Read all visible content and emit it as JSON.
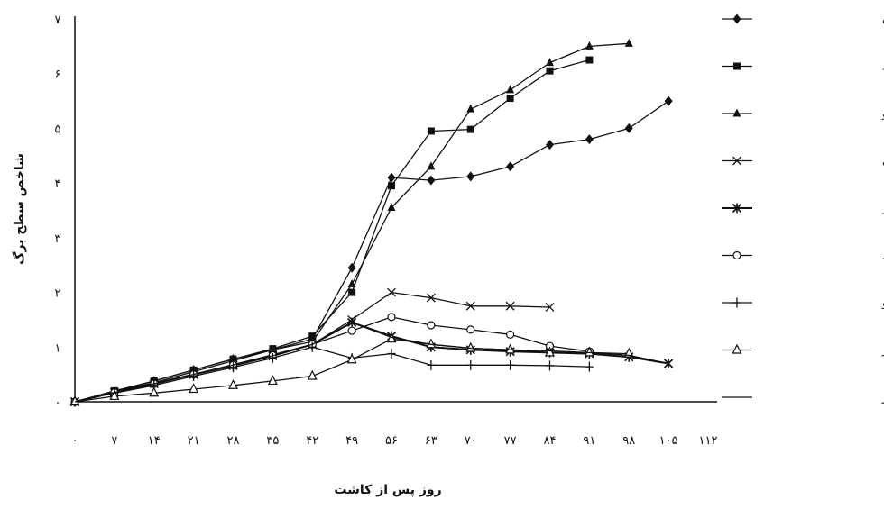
{
  "chart_data": {
    "type": "line",
    "title": "",
    "xlabel": "روز پس از کاشت",
    "ylabel": "شاخص سطح برگ",
    "x_ticks": [
      0,
      7,
      14,
      21,
      28,
      35,
      42,
      49,
      56,
      63,
      70,
      77,
      84,
      91,
      98,
      105,
      112
    ],
    "x_tick_labels": [
      "۰",
      "۷",
      "۱۴",
      "۲۱",
      "۲۸",
      "۳۵",
      "۴۲",
      "۴۹",
      "۵۶",
      "۶۳",
      "۷۰",
      "۷۷",
      "۸۴",
      "۹۱",
      "۹۸",
      "۱۰۵",
      "۱۱۲"
    ],
    "y_ticks": [
      0,
      1,
      2,
      3,
      4,
      5,
      6,
      7
    ],
    "y_tick_labels": [
      "۰",
      "۱",
      "۲",
      "۳",
      "۴",
      "۵",
      "۶",
      "۷"
    ],
    "xlim": [
      0,
      112
    ],
    "ylim": [
      0,
      7
    ],
    "grid": false,
    "legend_position": "right",
    "series": [
      {
        "name": "لوبیا چشم بلبلی کامران",
        "marker": "diamond",
        "x": [
          0,
          7,
          14,
          21,
          28,
          35,
          42,
          49,
          56,
          63,
          70,
          77,
          84,
          91,
          98,
          105
        ],
        "y": [
          0,
          0.18,
          0.38,
          0.58,
          0.78,
          0.95,
          1.15,
          2.45,
          4.1,
          4.05,
          4.12,
          4.3,
          4.7,
          4.8,
          5.0,
          5.5
        ]
      },
      {
        "name": "لوبیا چشم بلبلی مشهد",
        "marker": "square",
        "x": [
          0,
          7,
          14,
          21,
          28,
          35,
          42,
          49,
          56,
          63,
          70,
          77,
          84,
          91
        ],
        "y": [
          0,
          0.2,
          0.38,
          0.58,
          0.78,
          0.97,
          1.2,
          2.0,
          3.95,
          4.95,
          4.98,
          5.55,
          6.05,
          6.25
        ]
      },
      {
        "name": "لوبیا چشم بلبلی پرستو",
        "marker": "triangle-filled",
        "x": [
          0,
          7,
          14,
          21,
          28,
          35,
          42,
          49,
          56,
          63,
          70,
          77,
          84,
          91,
          98
        ],
        "y": [
          0,
          0.18,
          0.35,
          0.55,
          0.75,
          0.95,
          1.1,
          2.15,
          3.55,
          4.3,
          5.35,
          5.7,
          6.2,
          6.5,
          6.55
        ]
      },
      {
        "name": "لوبیا قرمز گلی",
        "marker": "x",
        "x": [
          0,
          7,
          14,
          21,
          28,
          35,
          42,
          49,
          56,
          63,
          70,
          77,
          84
        ],
        "y": [
          0,
          0.17,
          0.33,
          0.5,
          0.68,
          0.86,
          1.05,
          1.5,
          2.0,
          1.9,
          1.75,
          1.75,
          1.73
        ]
      },
      {
        "name": "لوبیا قرمز ناز",
        "marker": "star",
        "x": [
          0,
          7,
          14,
          21,
          28,
          35,
          42,
          49,
          56,
          63,
          70,
          77,
          84,
          91,
          98,
          105
        ],
        "y": [
          0,
          0.17,
          0.33,
          0.5,
          0.66,
          0.84,
          1.05,
          1.45,
          1.2,
          1.0,
          0.95,
          0.92,
          0.9,
          0.88,
          0.82,
          0.7
        ]
      },
      {
        "name": "لوبیا قرمز صیاد",
        "marker": "circle-open",
        "x": [
          0,
          7,
          14,
          21,
          28,
          35,
          42,
          49,
          56,
          63,
          70,
          77,
          84,
          91
        ],
        "y": [
          0,
          0.17,
          0.33,
          0.5,
          0.67,
          0.85,
          1.05,
          1.3,
          1.55,
          1.4,
          1.32,
          1.23,
          1.02,
          0.92
        ]
      },
      {
        "name": "ماش پرتو",
        "marker": "plus",
        "x": [
          0,
          7,
          14,
          21,
          28,
          35,
          42,
          49,
          56,
          63,
          70,
          77,
          84,
          91
        ],
        "y": [
          0,
          0.16,
          0.3,
          0.47,
          0.63,
          0.8,
          1.0,
          0.8,
          0.88,
          0.67,
          0.67,
          0.67,
          0.66,
          0.64
        ]
      },
      {
        "name": "ماش گوهر",
        "marker": "triangle-open",
        "x": [
          0,
          7,
          14,
          21,
          28,
          35,
          42,
          49,
          56,
          63,
          70,
          77,
          84,
          91,
          98
        ],
        "y": [
          0,
          0.1,
          0.16,
          0.23,
          0.3,
          0.38,
          0.47,
          0.77,
          1.15,
          1.05,
          0.98,
          0.95,
          0.9,
          0.9,
          0.88
        ]
      },
      {
        "name": "ماش مهر",
        "marker": "none",
        "x": [
          0,
          7,
          14,
          21,
          28,
          35,
          42,
          49,
          56,
          63,
          70,
          77,
          84,
          91,
          98,
          105
        ],
        "y": [
          0,
          0.17,
          0.33,
          0.5,
          0.67,
          0.84,
          1.05,
          1.45,
          1.18,
          1.05,
          0.98,
          0.95,
          0.93,
          0.9,
          0.85,
          0.7
        ]
      }
    ]
  }
}
